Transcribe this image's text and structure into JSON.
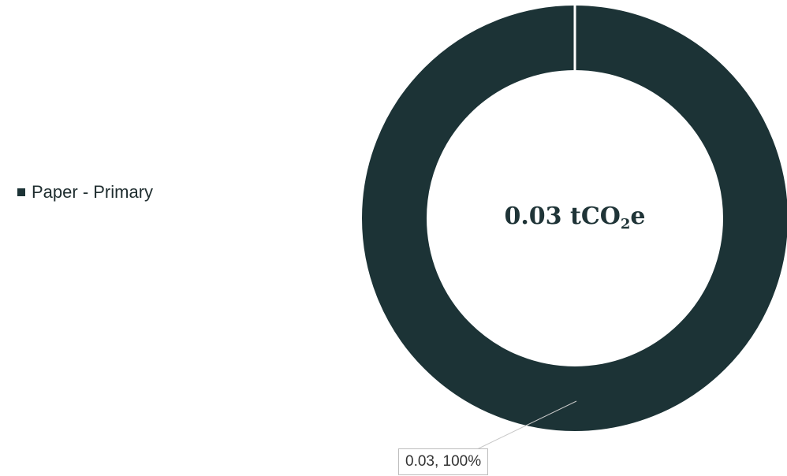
{
  "chart_data": {
    "type": "pie",
    "variant": "donut",
    "categories": [
      "Paper - Primary"
    ],
    "values": [
      0.03
    ],
    "percentages": [
      "100%"
    ],
    "colors": [
      "#1c3336"
    ],
    "center_label": {
      "value": "0.03 tCO",
      "subscript": "2",
      "suffix": "e"
    },
    "data_labels": [
      "0.03, 100%"
    ],
    "legend": {
      "placement": "left",
      "entries": [
        "Paper - Primary"
      ]
    }
  }
}
